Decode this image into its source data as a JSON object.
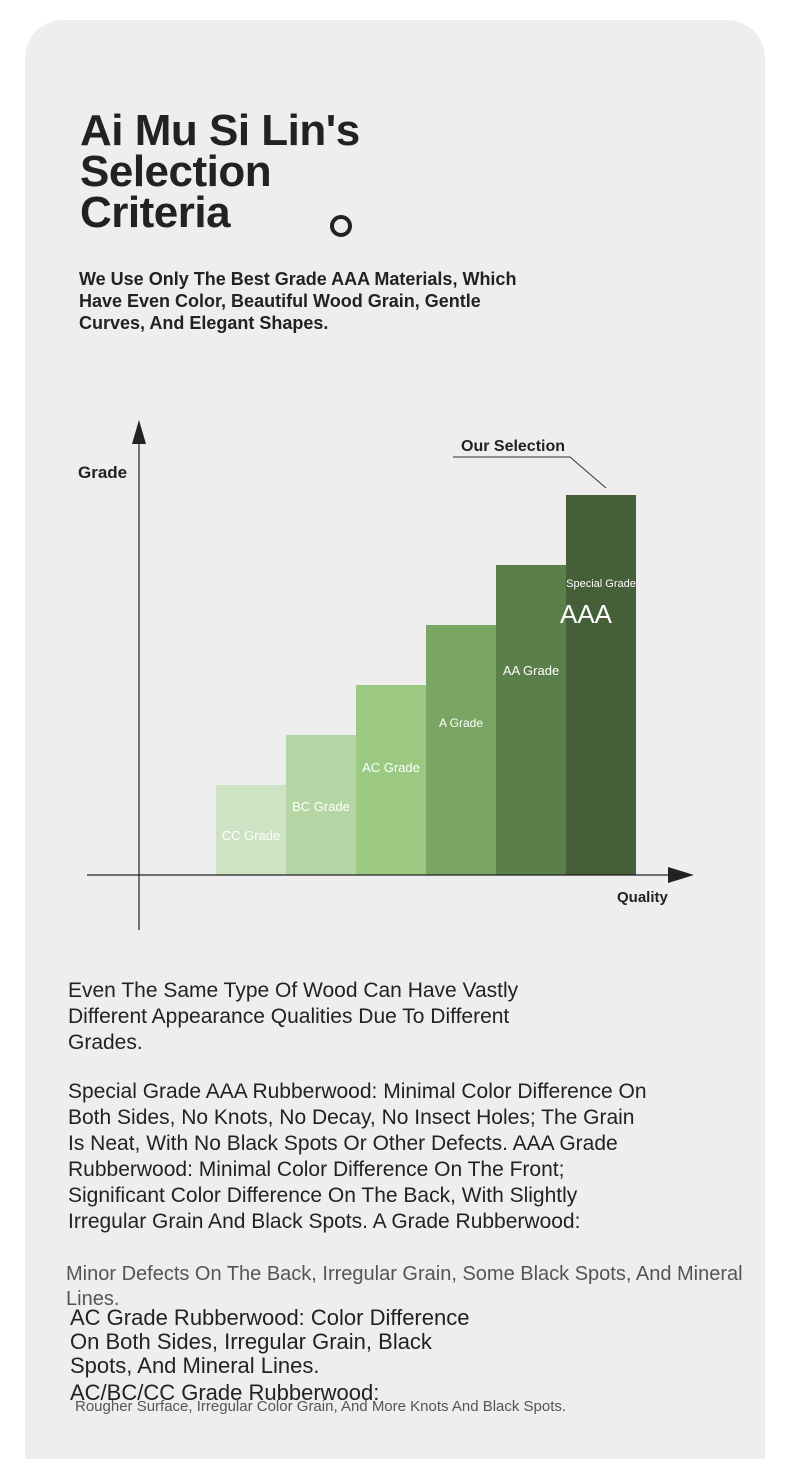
{
  "header": {
    "title_lines": [
      "Ai Mu Si Lin's",
      "Selection",
      "Criteria"
    ],
    "subtitle": "We Use Only The Best Grade AAA Materials, Which Have Even Color, Beautiful Wood Grain, Gentle Curves, And Elegant Shapes."
  },
  "chart_data": {
    "type": "bar",
    "xlabel": "Quality",
    "ylabel": "Grade",
    "annotation": "Our Selection",
    "categories": [
      "CC Grade",
      "BC Grade",
      "AC Grade",
      "A Grade",
      "AA Grade",
      "Special Grade"
    ],
    "values": [
      1,
      2,
      3,
      4,
      5,
      6
    ],
    "extra_label": "AAA",
    "colors": [
      "#cde3c4",
      "#b5d6a4",
      "#9bc981",
      "#7aa663",
      "#5a7f4a",
      "#455f39"
    ],
    "grid": false
  },
  "body": {
    "intro": "Even The Same Type Of Wood Can Have Vastly Different Appearance Qualities Due To Different Grades.",
    "details": "Special Grade AAA Rubberwood: Minimal Color Difference On Both Sides, No Knots, No Decay, No Insect Holes; The Grain Is Neat, With No Black Spots Or Other Defects. AAA Grade Rubberwood: Minimal Color Difference On The Front; Significant Color Difference On The Back, With Slightly Irregular Grain And Black Spots. A Grade Rubberwood:",
    "overlap": "Minor Defects On The Back, Irregular Grain, Some Black Spots, And Mineral Lines.",
    "ac": "AC Grade Rubberwood: Color Difference On Both Sides, Irregular Grain, Black Spots, And Mineral Lines.",
    "acbc": "AC/BC/CC Grade Rubberwood:",
    "rough": "Rougher Surface, Irregular Color Grain, And More Knots And Black Spots."
  }
}
